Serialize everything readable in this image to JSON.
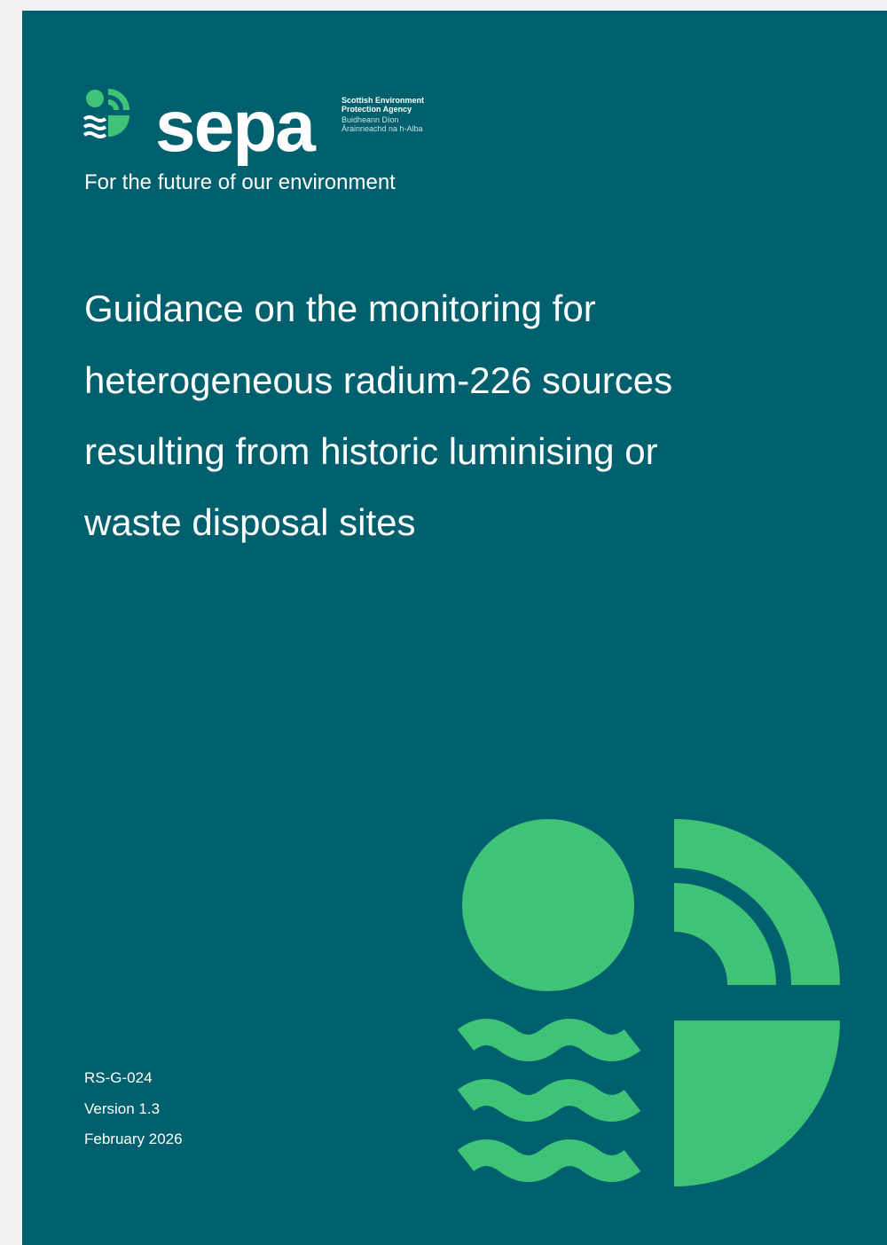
{
  "logo": {
    "wordmark": "sepa",
    "agency_en": [
      "Scottish Environment",
      "Protection Agency"
    ],
    "agency_gd": [
      "Buidheann Dìon",
      "Àrainneachd na h-Alba"
    ]
  },
  "tagline": "For the future of our environment",
  "title_lines": [
    "Guidance on the monitoring for",
    "heterogeneous radium-226 sources",
    "resulting from historic luminising or",
    "waste disposal sites"
  ],
  "document": {
    "reference": "RS-G-024",
    "version": "Version 1.3",
    "date": "February 2026"
  }
}
